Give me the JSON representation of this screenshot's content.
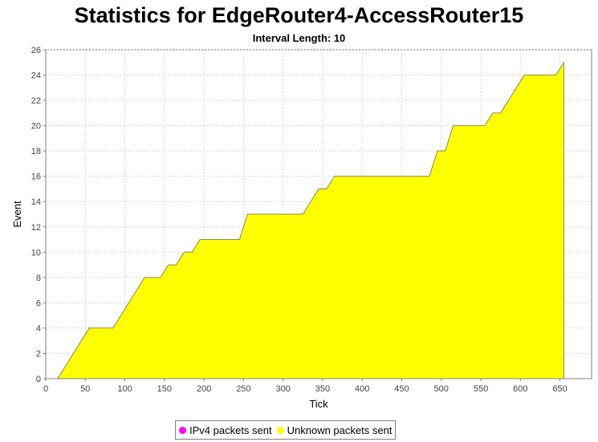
{
  "chart_data": {
    "type": "area",
    "title": "Statistics for EdgeRouter4-AccessRouter15",
    "subtitle": "Interval Length: 10",
    "xlabel": "Tick",
    "ylabel": "Event",
    "xlim": [
      0,
      690
    ],
    "ylim": [
      0,
      26
    ],
    "x_ticks": [
      0,
      50,
      100,
      150,
      200,
      250,
      300,
      350,
      400,
      450,
      500,
      550,
      600,
      650
    ],
    "y_ticks": [
      0,
      2,
      4,
      6,
      8,
      10,
      12,
      14,
      16,
      18,
      20,
      22,
      24,
      26
    ],
    "grid": true,
    "legend_position": "bottom",
    "series": [
      {
        "name": "IPv4 packets sent",
        "color": "#ff00ff",
        "x": [],
        "y": []
      },
      {
        "name": "Unknown packets sent",
        "color": "#ffff00",
        "x": [
          15,
          25,
          35,
          45,
          55,
          65,
          75,
          85,
          95,
          105,
          115,
          125,
          135,
          145,
          155,
          165,
          175,
          185,
          195,
          205,
          215,
          225,
          235,
          245,
          255,
          265,
          275,
          285,
          295,
          305,
          315,
          325,
          335,
          345,
          355,
          365,
          375,
          385,
          395,
          405,
          415,
          425,
          435,
          445,
          455,
          465,
          475,
          485,
          495,
          505,
          515,
          525,
          535,
          545,
          555,
          565,
          575,
          585,
          595,
          605,
          615,
          625,
          635,
          645,
          655
        ],
        "y": [
          0,
          1,
          2,
          3,
          4,
          4,
          4,
          4,
          5,
          6,
          7,
          8,
          8,
          8,
          9,
          9,
          10,
          10,
          11,
          11,
          11,
          11,
          11,
          11,
          13,
          13,
          13,
          13,
          13,
          13,
          13,
          13,
          14,
          15,
          15,
          16,
          16,
          16,
          16,
          16,
          16,
          16,
          16,
          16,
          16,
          16,
          16,
          16,
          18,
          18,
          20,
          20,
          20,
          20,
          20,
          21,
          21,
          22,
          23,
          24,
          24,
          24,
          24,
          24,
          25
        ]
      }
    ]
  }
}
